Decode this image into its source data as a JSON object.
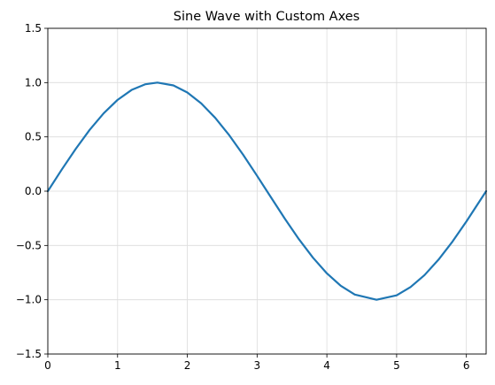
{
  "chart_data": {
    "type": "line",
    "title": "Sine Wave with Custom Axes",
    "xlabel": "",
    "ylabel": "",
    "xlim": [
      0,
      6.2832
    ],
    "ylim": [
      -1.5,
      1.5
    ],
    "grid": true,
    "x_ticks": [
      0,
      1,
      2,
      3,
      4,
      5,
      6
    ],
    "y_ticks": [
      -1.5,
      -1.0,
      -0.5,
      0.0,
      0.5,
      1.0,
      1.5
    ],
    "x_tick_labels": [
      "0",
      "1",
      "2",
      "3",
      "4",
      "5",
      "6"
    ],
    "y_tick_labels": [
      "−1.5",
      "−1.0",
      "−0.5",
      "0.0",
      "0.5",
      "1.0",
      "1.5"
    ],
    "series": [
      {
        "color": "#1f77b4",
        "x": [
          0,
          0.2,
          0.4,
          0.6,
          0.8,
          1.0,
          1.2,
          1.4,
          1.5708,
          1.8,
          2.0,
          2.2,
          2.4,
          2.6,
          2.8,
          3.0,
          3.1416,
          3.4,
          3.6,
          3.8,
          4.0,
          4.2,
          4.4,
          4.7124,
          5.0,
          5.2,
          5.4,
          5.6,
          5.8,
          6.0,
          6.2832
        ],
        "y": [
          0.0,
          0.199,
          0.389,
          0.565,
          0.717,
          0.841,
          0.932,
          0.985,
          1.0,
          0.974,
          0.909,
          0.808,
          0.675,
          0.516,
          0.335,
          0.141,
          0.0,
          -0.256,
          -0.443,
          -0.612,
          -0.757,
          -0.872,
          -0.952,
          -1.0,
          -0.959,
          -0.883,
          -0.773,
          -0.631,
          -0.465,
          -0.279,
          0.0
        ]
      }
    ]
  }
}
